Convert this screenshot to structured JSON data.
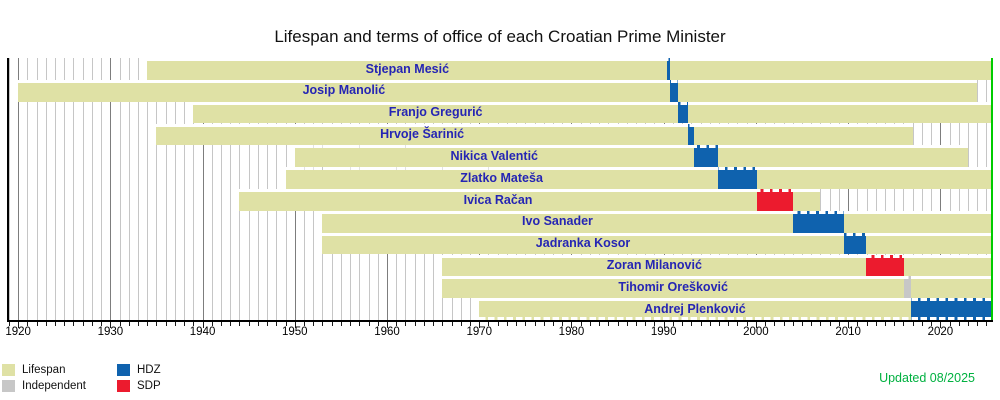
{
  "chart_data": {
    "type": "timeline_gantt",
    "title": "Lifespan and terms of office of each Croatian Prime Minister",
    "x_axis": {
      "min": 1918.9,
      "max": 2025.6,
      "minor_tick_interval_years": 1,
      "decade_tick_years": [
        1920,
        1930,
        1940,
        1950,
        1960,
        1970,
        1980,
        1990,
        2000,
        2010,
        2020
      ]
    },
    "present_year": 2025.6,
    "party_colors": {
      "HDZ": "#0f62ae",
      "SDP": "#ec1b2e",
      "Independent": "#c7c7c7"
    },
    "lifespan_color": "#dfe1a5",
    "rows": [
      {
        "name": "Stjepan Mesić",
        "party": "HDZ",
        "born": 1934,
        "died": null,
        "term_start": 1990.41,
        "term_end": 1990.65
      },
      {
        "name": "Josip Manolić",
        "party": "HDZ",
        "born": 1920,
        "died": 2024,
        "term_start": 1990.65,
        "term_end": 1991.54
      },
      {
        "name": "Franjo Gregurić",
        "party": "HDZ",
        "born": 1939,
        "died": null,
        "term_start": 1991.54,
        "term_end": 1992.61
      },
      {
        "name": "Hrvoje Šarinić",
        "party": "HDZ",
        "born": 1935,
        "died": 2017,
        "term_start": 1992.61,
        "term_end": 1993.25
      },
      {
        "name": "Nikica Valentić",
        "party": "HDZ",
        "born": 1950,
        "died": 2023,
        "term_start": 1993.25,
        "term_end": 1995.84
      },
      {
        "name": "Zlatko Mateša",
        "party": "HDZ",
        "born": 1949,
        "died": null,
        "term_start": 1995.84,
        "term_end": 2000.07
      },
      {
        "name": "Ivica Račan",
        "party": "SDP",
        "born": 1944,
        "died": 2007,
        "term_start": 2000.07,
        "term_end": 2003.97
      },
      {
        "name": "Ivo Sanader",
        "party": "HDZ",
        "born": 1953,
        "died": null,
        "term_start": 2003.97,
        "term_end": 2009.51
      },
      {
        "name": "Jadranka Kosor",
        "party": "HDZ",
        "born": 1953,
        "died": null,
        "term_start": 2009.51,
        "term_end": 2011.97
      },
      {
        "name": "Zoran Milanović",
        "party": "SDP",
        "born": 1966,
        "died": null,
        "term_start": 2011.97,
        "term_end": 2016.06
      },
      {
        "name": "Tihomir Orešković",
        "party": "Independent",
        "born": 1966,
        "died": null,
        "term_start": 2016.06,
        "term_end": 2016.79
      },
      {
        "name": "Andrej Plenković",
        "party": "HDZ",
        "born": 1970,
        "died": null,
        "term_start": 2016.79,
        "term_end": null
      }
    ]
  },
  "legend": {
    "items": [
      {
        "label": "Lifespan",
        "color": "#dfe1a5"
      },
      {
        "label": "Independent",
        "color": "#c7c7c7"
      },
      {
        "label": "HDZ",
        "color": "#0f62ae"
      },
      {
        "label": "SDP",
        "color": "#ec1b2e"
      }
    ]
  },
  "updated_label": "Updated 08/2025",
  "colors": {
    "pm_name_text": "#2525b4",
    "updated_text": "#00b140",
    "today_line": "#00cc00",
    "grid_minor": "#c6c6c6",
    "grid_major": "#7d7d7d",
    "axis": "#000000"
  }
}
